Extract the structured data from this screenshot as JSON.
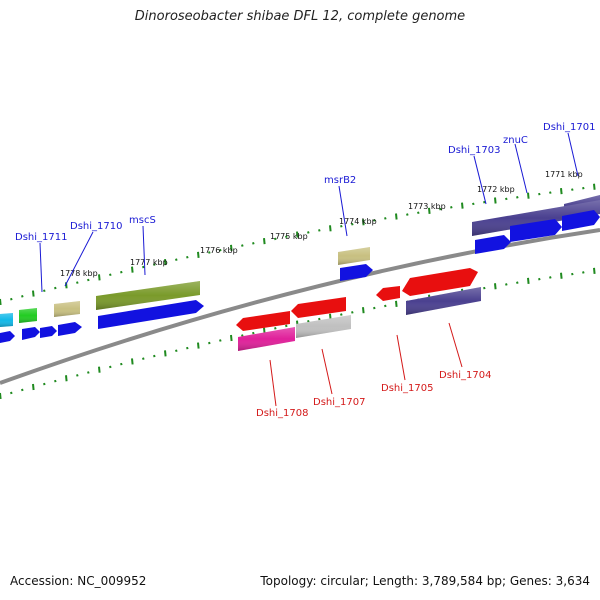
{
  "title": "Dinoroseobacter shibae DFL 12, complete genome",
  "footer": {
    "accession": "Accession: NC_009952",
    "summary": "Topology: circular; Length: 3,789,584 bp; Genes: 3,634"
  },
  "kbp_ticks": [
    "1771 kbp",
    "1772 kbp",
    "1773 kbp",
    "1774 kbp",
    "1775 kbp",
    "1776 kbp",
    "1777 kbp",
    "1778 kbp"
  ],
  "forward_genes": [
    "Dshi_1701",
    "znuC",
    "Dshi_1703",
    "msrB2",
    "mscS",
    "Dshi_1710",
    "Dshi_1711"
  ],
  "reverse_genes": [
    "Dshi_1704",
    "Dshi_1705",
    "Dshi_1707",
    "Dshi_1708"
  ],
  "colors": {
    "forward_label": "#1a1ad4",
    "reverse_label": "#d41a1a",
    "backbone": "#808080",
    "tick": "#1f8a1f",
    "cds_blue": "#1212e0",
    "cds_red": "#e80f0f",
    "cds_navy": "#4a4090",
    "cds_olive": "#7a9a2a",
    "cds_khaki": "#c8c080",
    "cds_magenta": "#e0209a",
    "cds_grey": "#c0c0c0",
    "cds_green": "#22cc22",
    "cds_cyan": "#10b8e8"
  }
}
